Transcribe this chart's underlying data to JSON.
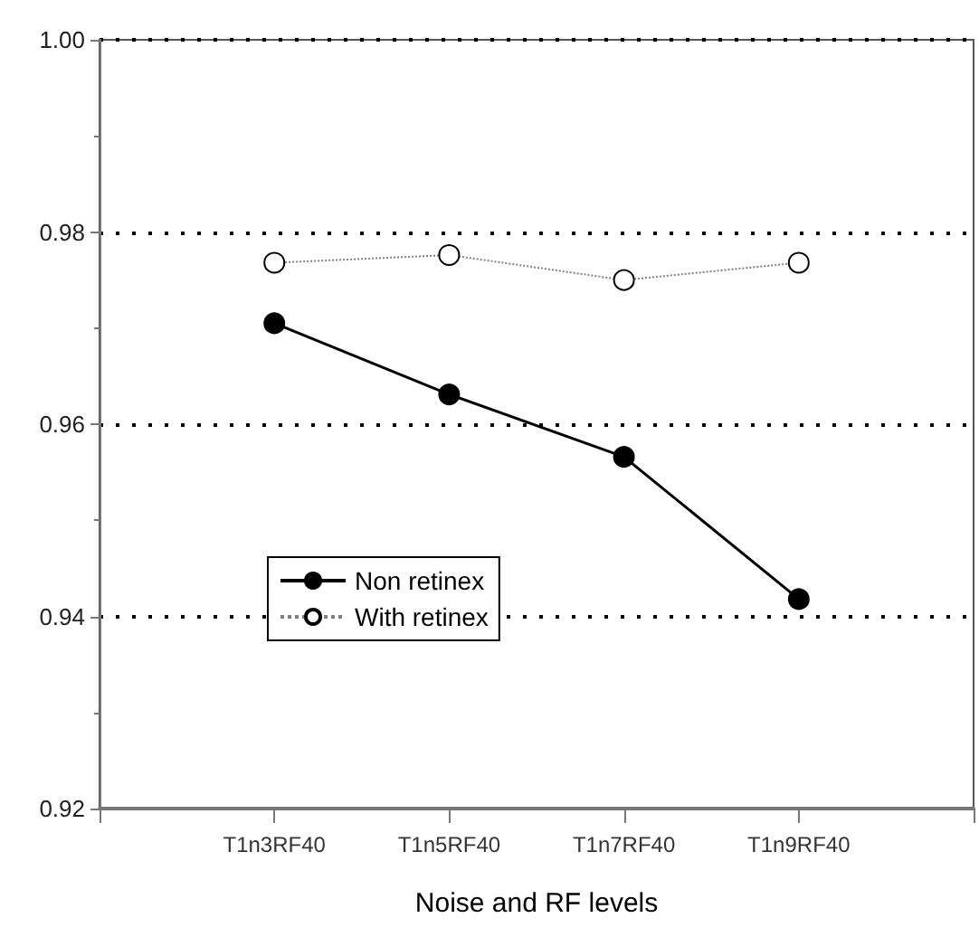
{
  "chart_data": {
    "type": "line",
    "xlabel": "Noise and RF levels",
    "categories": [
      null,
      "T1n3RF40",
      "T1n5RF40",
      "T1n7RF40",
      "T1n9RF40",
      null
    ],
    "series": [
      {
        "name": "Non retinex",
        "color": "#000000",
        "values": [
          null,
          0.9705,
          0.9631,
          0.9566,
          0.9418,
          null
        ],
        "marker": "circle",
        "line_style": "solid"
      },
      {
        "name": "With retinex",
        "color": "#808080",
        "values": [
          null,
          0.9768,
          0.9776,
          0.975,
          0.9768,
          null
        ],
        "marker": "circle",
        "line_style": "dotted"
      }
    ],
    "ylim": [
      0.92,
      1.0
    ],
    "yticks": [
      0.92,
      0.94,
      0.96,
      0.98,
      {
        "value": 1.0,
        "label": "1.00"
      }
    ],
    "grid": "y",
    "legend": "bottom left"
  }
}
